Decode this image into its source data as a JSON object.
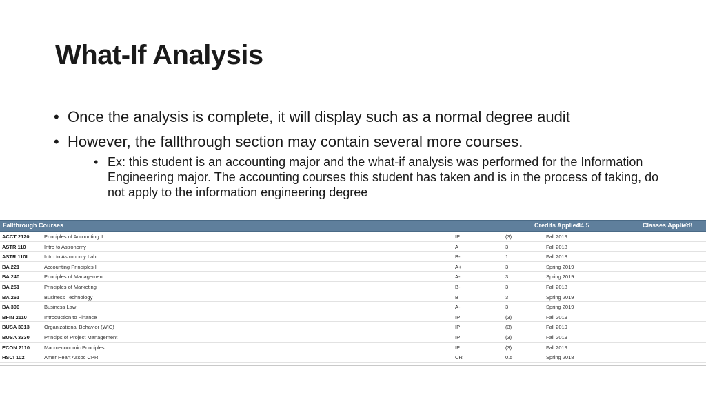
{
  "slide": {
    "title": "What-If Analysis",
    "bullets": [
      "Once the analysis is complete, it will display such as a normal degree audit",
      "However, the fallthrough section may contain several more courses."
    ],
    "sub_bullet": "Ex: this student is an accounting major and the what-if analysis was performed for the Information Engineering major. The accounting courses this student has taken and is in the process of taking, do not apply to the information engineering degree"
  },
  "table": {
    "header": {
      "title": "Fallthrough Courses",
      "credits_label": "Credits Applied:",
      "credits_value": "34.5",
      "classes_label": "Classes Applied:",
      "classes_value": "13"
    },
    "rows": [
      {
        "code": "ACCT 2120",
        "title": "Principles of Accounting II",
        "grade": "IP",
        "credits": "(3)",
        "term": "Fall 2019"
      },
      {
        "code": "ASTR 110",
        "title": "Intro to Astronomy",
        "grade": "A",
        "credits": "3",
        "term": "Fall 2018"
      },
      {
        "code": "ASTR 110L",
        "title": "Intro to Astronomy Lab",
        "grade": "B-",
        "credits": "1",
        "term": "Fall 2018"
      },
      {
        "code": "BA 221",
        "title": "Accounting Principles I",
        "grade": "A+",
        "credits": "3",
        "term": "Spring 2019"
      },
      {
        "code": "BA 240",
        "title": "Principles of Management",
        "grade": "A-",
        "credits": "3",
        "term": "Spring 2019"
      },
      {
        "code": "BA 251",
        "title": "Principles of Marketing",
        "grade": "B-",
        "credits": "3",
        "term": "Fall 2018"
      },
      {
        "code": "BA 261",
        "title": "Business Technology",
        "grade": "B",
        "credits": "3",
        "term": "Spring 2019"
      },
      {
        "code": "BA 300",
        "title": "Business Law",
        "grade": "A-",
        "credits": "3",
        "term": "Spring 2019"
      },
      {
        "code": "BFIN 2110",
        "title": "Introduction to Finance",
        "grade": "IP",
        "credits": "(3)",
        "term": "Fall 2019"
      },
      {
        "code": "BUSA 3313",
        "title": "Organizational Behavior (WIC)",
        "grade": "IP",
        "credits": "(3)",
        "term": "Fall 2019"
      },
      {
        "code": "BUSA 3330",
        "title": "Princips of Project Management",
        "grade": "IP",
        "credits": "(3)",
        "term": "Fall 2019"
      },
      {
        "code": "ECON 2110",
        "title": "Macroeconomic Principles",
        "grade": "IP",
        "credits": "(3)",
        "term": "Fall 2019"
      },
      {
        "code": "HSCI 102",
        "title": "Amer Heart Assoc CPR",
        "grade": "CR",
        "credits": "0.5",
        "term": "Spring 2018"
      }
    ]
  }
}
